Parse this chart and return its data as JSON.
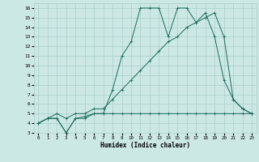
{
  "xlabel": "Humidex (Indice chaleur)",
  "background_color": "#cce8e5",
  "grid_color": "#aacfcc",
  "line_color": "#1a6b5a",
  "xlim": [
    -0.5,
    23.5
  ],
  "ylim": [
    3,
    16.5
  ],
  "xticks": [
    0,
    1,
    2,
    3,
    4,
    5,
    6,
    7,
    8,
    9,
    10,
    11,
    12,
    13,
    14,
    15,
    16,
    17,
    18,
    19,
    20,
    21,
    22,
    23
  ],
  "yticks": [
    3,
    4,
    5,
    6,
    7,
    8,
    9,
    10,
    11,
    12,
    13,
    14,
    15,
    16
  ],
  "curve1_x": [
    0,
    1,
    2,
    3,
    4,
    5,
    6,
    7,
    8,
    9,
    10,
    11,
    12,
    13,
    14,
    15,
    16,
    17,
    18,
    19,
    20,
    21,
    22,
    23
  ],
  "curve1_y": [
    4,
    4.5,
    4.5,
    3,
    4.5,
    4.5,
    5,
    5,
    7.5,
    11,
    12.5,
    16,
    16,
    16,
    13,
    16,
    16,
    14.5,
    15.5,
    13,
    8.5,
    6.5,
    5.5,
    5
  ],
  "curve2_x": [
    0,
    1,
    2,
    3,
    4,
    5,
    6,
    7,
    8,
    9,
    10,
    11,
    12,
    13,
    14,
    15,
    16,
    17,
    18,
    19,
    20,
    21,
    22,
    23
  ],
  "curve2_y": [
    4,
    4.5,
    5,
    4.5,
    5,
    5,
    5.5,
    5.5,
    6.5,
    7.5,
    8.5,
    9.5,
    10.5,
    11.5,
    12.5,
    13,
    14,
    14.5,
    15,
    15.5,
    13,
    6.5,
    5.5,
    5
  ],
  "curve3_x": [
    0,
    1,
    2,
    3,
    4,
    5,
    6,
    7,
    8,
    9,
    10,
    11,
    12,
    13,
    14,
    15,
    16,
    17,
    18,
    19,
    20,
    21,
    22,
    23
  ],
  "curve3_y": [
    4,
    4.5,
    4.5,
    3,
    4.5,
    4.7,
    5,
    5,
    5,
    5,
    5,
    5,
    5,
    5,
    5,
    5,
    5,
    5,
    5,
    5,
    5,
    5,
    5,
    5
  ]
}
